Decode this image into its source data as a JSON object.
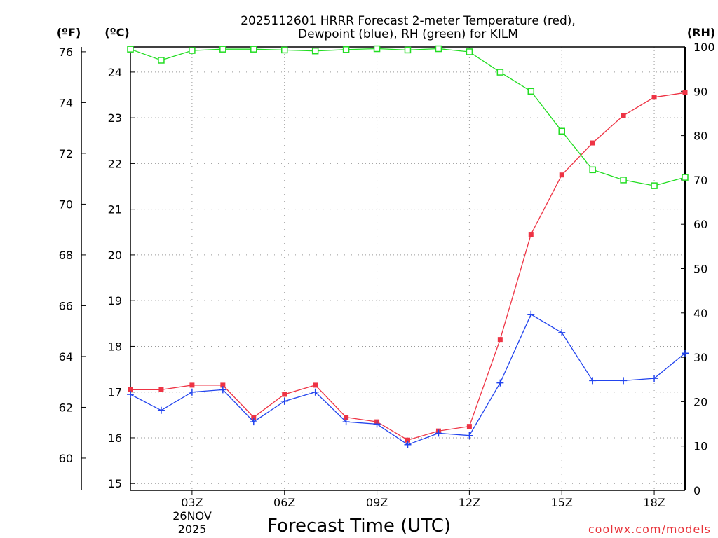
{
  "chart_data": {
    "type": "line",
    "title_line1": "2025112601 HRRR Forecast 2-meter Temperature (red),",
    "title_line2": "Dewpoint (blue), RH (green) for KILM",
    "xlabel": "Forecast Time (UTC)",
    "credit": "coolwx.com/models",
    "unit_f": "(ºF)",
    "unit_c": "(ºC)",
    "unit_rh": "(RH)",
    "x": [
      1,
      2,
      3,
      4,
      5,
      6,
      7,
      8,
      9,
      10,
      11,
      12,
      13,
      14,
      15,
      16,
      17,
      18,
      19
    ],
    "xlim": [
      1,
      19
    ],
    "x_ticks": [
      {
        "x": 3,
        "label": "03Z"
      },
      {
        "x": 6,
        "label": "06Z"
      },
      {
        "x": 9,
        "label": "09Z"
      },
      {
        "x": 12,
        "label": "12Z"
      },
      {
        "x": 15,
        "label": "15Z"
      },
      {
        "x": 18,
        "label": "18Z"
      }
    ],
    "date_line1": "26NOV",
    "date_line2": "2025",
    "celsius_axis": {
      "range": [
        14.85,
        24.55
      ],
      "ticks": [
        15,
        16,
        17,
        18,
        19,
        20,
        21,
        22,
        23,
        24
      ]
    },
    "fahrenheit_axis": {
      "range": [
        58.73,
        76.19
      ],
      "ticks": [
        60,
        62,
        64,
        66,
        68,
        70,
        72,
        74,
        76
      ]
    },
    "rh_axis": {
      "range": [
        0,
        100
      ],
      "ticks": [
        0,
        10,
        20,
        30,
        40,
        50,
        60,
        70,
        80,
        90,
        100
      ]
    },
    "series": [
      {
        "name": "Temperature",
        "color": "#ee3344",
        "marker": "filled-square",
        "axis": "celsius",
        "values": [
          17.05,
          17.05,
          17.15,
          17.15,
          16.45,
          16.95,
          17.15,
          16.45,
          16.35,
          15.95,
          16.15,
          16.25,
          18.15,
          20.45,
          21.75,
          22.45,
          23.05,
          23.45,
          23.55
        ]
      },
      {
        "name": "Dewpoint",
        "color": "#2244ee",
        "marker": "plus",
        "axis": "celsius",
        "values": [
          16.95,
          16.6,
          17.0,
          17.05,
          16.35,
          16.8,
          17.0,
          16.35,
          16.3,
          15.85,
          16.1,
          16.05,
          17.2,
          18.7,
          18.3,
          17.25,
          17.25,
          17.3,
          17.85
        ]
      },
      {
        "name": "RH",
        "color": "#22dd22",
        "marker": "open-square",
        "axis": "rh",
        "values": [
          99.5,
          97,
          99.2,
          99.5,
          99.5,
          99.3,
          99.1,
          99.4,
          99.6,
          99.3,
          99.6,
          98.9,
          94.3,
          90,
          81,
          72.3,
          70,
          68.7,
          70.6
        ]
      }
    ]
  }
}
